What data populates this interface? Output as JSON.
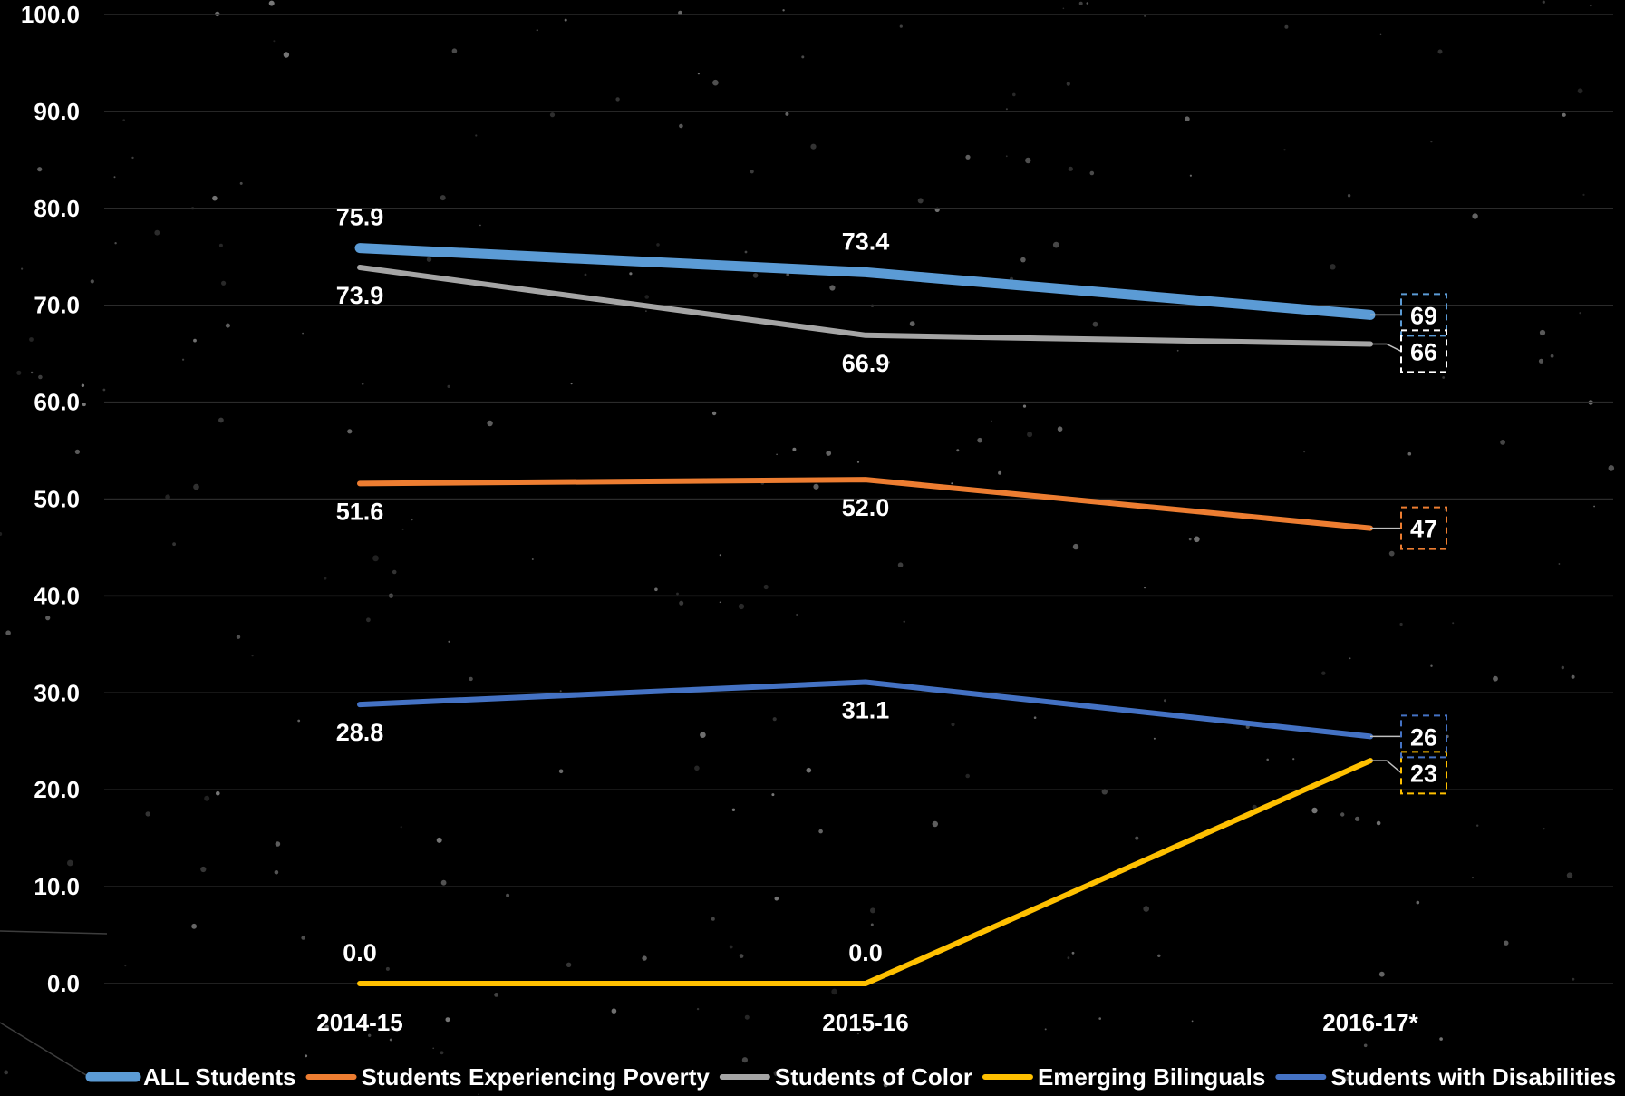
{
  "chart_data": {
    "type": "line",
    "categories": [
      "2014-15",
      "2015-16",
      "2016-17*"
    ],
    "ylim": [
      0,
      100
    ],
    "y_ticks": [
      "0.0",
      "10.0",
      "20.0",
      "30.0",
      "40.0",
      "50.0",
      "60.0",
      "70.0",
      "80.0",
      "90.0",
      "100.0"
    ],
    "grid": true,
    "legend_position": "bottom",
    "series": [
      {
        "name": "ALL Students",
        "color": "#5b9bd5",
        "values": [
          75.9,
          73.4,
          69
        ],
        "labels": [
          "75.9",
          "73.4",
          "69"
        ],
        "label_positions": [
          "above",
          "above",
          "callout"
        ],
        "callout_border": "#5b9bd5",
        "thick": true
      },
      {
        "name": "Students Experiencing Poverty",
        "color": "#ed7d31",
        "values": [
          51.6,
          52.0,
          47
        ],
        "labels": [
          "51.6",
          "52.0",
          "47"
        ],
        "label_positions": [
          "below",
          "below",
          "callout"
        ],
        "callout_border": "#ed7d31"
      },
      {
        "name": "Students of Color",
        "color": "#a5a5a5",
        "values": [
          73.9,
          66.9,
          66
        ],
        "labels": [
          "73.9",
          "66.9",
          "66"
        ],
        "label_positions": [
          "below",
          "below",
          "callout"
        ],
        "callout_border": "#ffffff"
      },
      {
        "name": "Emerging Bilinguals",
        "color": "#ffc000",
        "values": [
          0.0,
          0.0,
          23
        ],
        "labels": [
          "0.0",
          "0.0",
          "23"
        ],
        "label_positions": [
          "above",
          "above",
          "callout"
        ],
        "callout_border": "#ffc000"
      },
      {
        "name": "Students with Disabilities",
        "color": "#4472c4",
        "values": [
          28.8,
          31.1,
          25.5
        ],
        "labels": [
          "28.8",
          "31.1",
          "26"
        ],
        "label_positions": [
          "below",
          "below",
          "callout"
        ],
        "callout_border": "#4472c4"
      }
    ]
  }
}
